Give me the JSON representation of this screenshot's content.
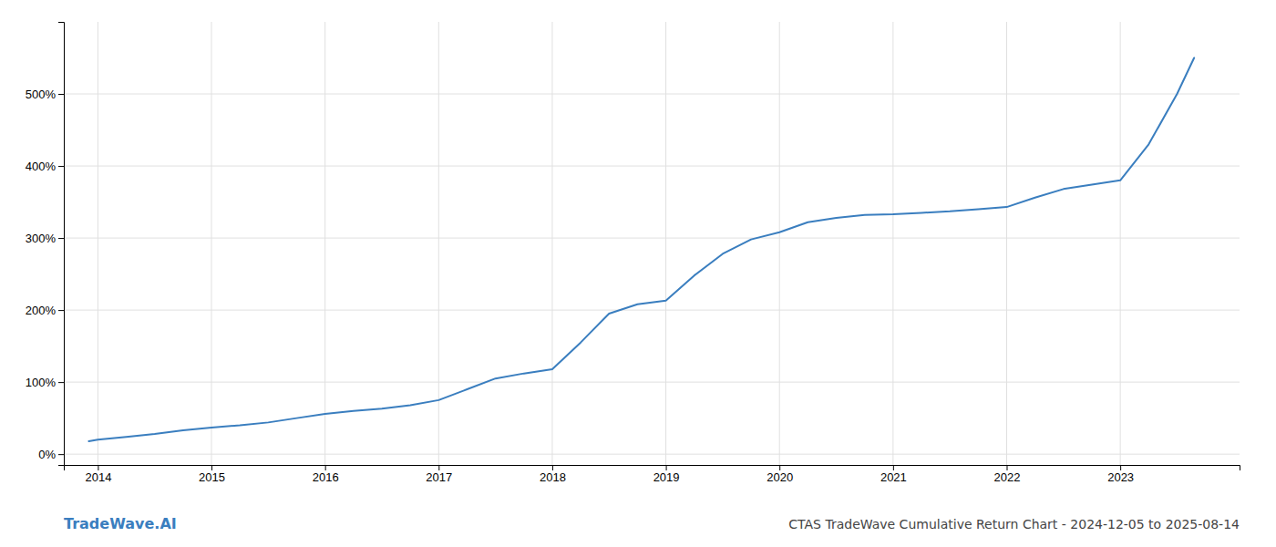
{
  "chart_data": {
    "type": "line",
    "title": "CTAS TradeWave Cumulative Return Chart - 2024-12-05 to 2025-08-14",
    "annotations": [
      "TradeWave.AI"
    ],
    "color": "#3a7ebf",
    "grid": true,
    "x": [
      2013.92,
      2014.0,
      2014.25,
      2014.5,
      2014.75,
      2015.0,
      2015.25,
      2015.5,
      2015.75,
      2016.0,
      2016.25,
      2016.5,
      2016.75,
      2017.0,
      2017.25,
      2017.5,
      2017.75,
      2018.0,
      2018.25,
      2018.5,
      2018.75,
      2019.0,
      2019.25,
      2019.5,
      2019.75,
      2020.0,
      2020.25,
      2020.5,
      2020.75,
      2021.0,
      2021.25,
      2021.5,
      2021.75,
      2022.0,
      2022.25,
      2022.5,
      2022.75,
      2023.0,
      2023.25,
      2023.5,
      2023.65
    ],
    "values": [
      18,
      20,
      24,
      28,
      33,
      37,
      40,
      44,
      50,
      56,
      60,
      63,
      68,
      75,
      90,
      105,
      112,
      118,
      155,
      195,
      208,
      213,
      248,
      278,
      298,
      308,
      322,
      328,
      332,
      333,
      335,
      337,
      340,
      343,
      356,
      368,
      374,
      380,
      430,
      500,
      550
    ],
    "xlim": [
      2013.7,
      2024.05
    ],
    "ylim": [
      -15,
      600
    ],
    "xticks": [
      2014,
      2015,
      2016,
      2017,
      2018,
      2019,
      2020,
      2021,
      2022,
      2023
    ],
    "yticks": [
      {
        "value": 0,
        "label": "0%"
      },
      {
        "value": 100,
        "label": "100%"
      },
      {
        "value": 200,
        "label": "200%"
      },
      {
        "value": 300,
        "label": "300%"
      },
      {
        "value": 400,
        "label": "400%"
      },
      {
        "value": 500,
        "label": "500%"
      }
    ]
  }
}
